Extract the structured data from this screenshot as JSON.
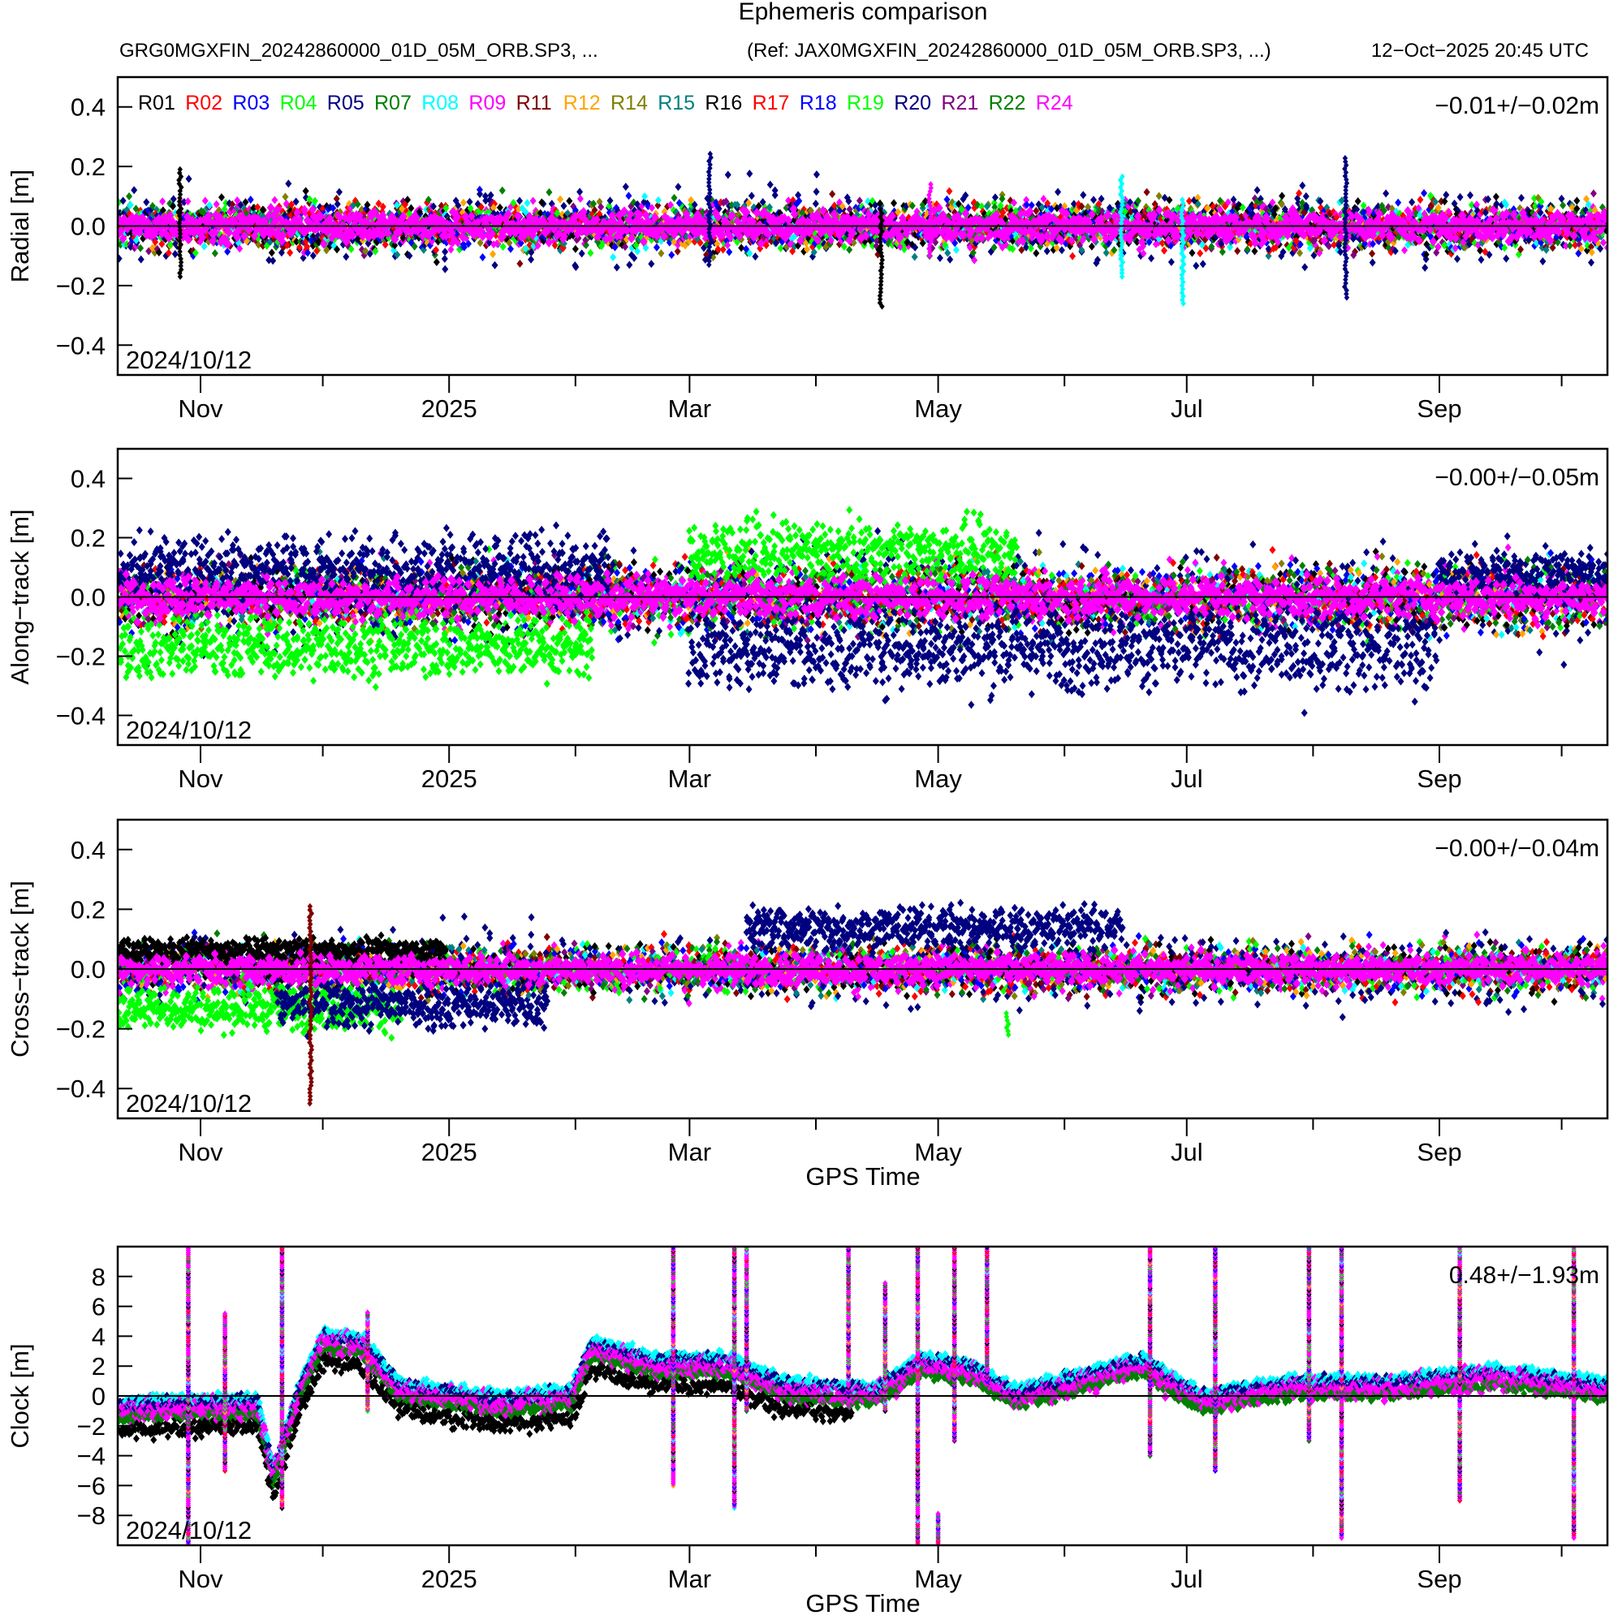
{
  "chart_data": {
    "type": "scatter",
    "title": "Ephemeris comparison",
    "subtitle_left": "GRG0MGXFIN_20242860000_01D_05M_ORB.SP3, ...",
    "subtitle_ref": "(Ref: JAX0MGXFIN_20242860000_01D_05M_ORB.SP3, ...)",
    "timestamp": "12−Oct−2025 20:45 UTC",
    "x_axis": {
      "label": "GPS Time",
      "start": "2024-10-12",
      "end": "2025-10-12",
      "major_ticks": [
        {
          "date": "2024-11-01",
          "label": "Nov"
        },
        {
          "date": "2025-01-01",
          "label": "2025"
        },
        {
          "date": "2025-03-01",
          "label": "Mar"
        },
        {
          "date": "2025-05-01",
          "label": "May"
        },
        {
          "date": "2025-07-01",
          "label": "Jul"
        },
        {
          "date": "2025-09-01",
          "label": "Sep"
        }
      ],
      "minor_ticks": [
        "2024-12-01",
        "2025-02-01",
        "2025-04-01",
        "2025-06-01",
        "2025-08-01",
        "2025-10-01"
      ]
    },
    "legend": {
      "placement": "top-left",
      "entries": [
        {
          "name": "R01",
          "color": "#000000"
        },
        {
          "name": "R02",
          "color": "#ff0000"
        },
        {
          "name": "R03",
          "color": "#0000ff"
        },
        {
          "name": "R04",
          "color": "#00ff00"
        },
        {
          "name": "R05",
          "color": "#000080"
        },
        {
          "name": "R07",
          "color": "#008000"
        },
        {
          "name": "R08",
          "color": "#00ffff"
        },
        {
          "name": "R09",
          "color": "#ff00ff"
        },
        {
          "name": "R11",
          "color": "#800000"
        },
        {
          "name": "R12",
          "color": "#ffa500"
        },
        {
          "name": "R14",
          "color": "#808000"
        },
        {
          "name": "R15",
          "color": "#008080"
        },
        {
          "name": "R16",
          "color": "#000000"
        },
        {
          "name": "R17",
          "color": "#ff0000"
        },
        {
          "name": "R18",
          "color": "#0000ff"
        },
        {
          "name": "R19",
          "color": "#00ff00"
        },
        {
          "name": "R20",
          "color": "#000080"
        },
        {
          "name": "R21",
          "color": "#800080"
        },
        {
          "name": "R22",
          "color": "#008000"
        },
        {
          "name": "R24",
          "color": "#ff00ff"
        }
      ]
    },
    "panels": [
      {
        "id": "radial",
        "ylabel": "Radial [m]",
        "ylim": [
          -0.5,
          0.5
        ],
        "yticks": [
          -0.4,
          -0.2,
          0.0,
          0.2,
          0.4
        ],
        "ytick_labels": [
          "−0.4",
          "−0.2",
          "0.0",
          "0.2",
          "0.4"
        ],
        "stat": "−0.01+/−0.02m",
        "date_label": "2024/10/12",
        "show_xlabel": false,
        "spread_typical": 0.05,
        "spikes": [
          {
            "date": "2024-10-27",
            "min": -0.17,
            "max": 0.2,
            "sat": "R01"
          },
          {
            "date": "2025-03-06",
            "min": -0.13,
            "max": 0.25,
            "sat": "R05"
          },
          {
            "date": "2025-04-17",
            "min": -0.27,
            "max": 0.06,
            "sat": "R01"
          },
          {
            "date": "2025-04-29",
            "min": -0.1,
            "max": 0.15,
            "sat": "R09"
          },
          {
            "date": "2025-06-15",
            "min": -0.17,
            "max": 0.17,
            "sat": "R08"
          },
          {
            "date": "2025-06-30",
            "min": -0.26,
            "max": 0.09,
            "sat": "R08"
          },
          {
            "date": "2025-08-09",
            "min": -0.24,
            "max": 0.23,
            "sat": "R05"
          }
        ]
      },
      {
        "id": "along-track",
        "ylabel": "Along−track [m]",
        "ylim": [
          -0.5,
          0.5
        ],
        "yticks": [
          -0.4,
          -0.2,
          0.0,
          0.2,
          0.4
        ],
        "ytick_labels": [
          "−0.4",
          "−0.2",
          "0.0",
          "0.2",
          "0.4"
        ],
        "stat": "−0.00+/−0.05m",
        "date_label": "2024/10/12",
        "show_xlabel": false,
        "spread_typical": 0.07,
        "segments": [
          {
            "sat": "R05",
            "from": "2024-10-12",
            "to": "2025-02-10",
            "center": 0.09,
            "spread": 0.12
          },
          {
            "sat": "R04",
            "from": "2024-10-12",
            "to": "2025-02-05",
            "center": -0.17,
            "spread": 0.1
          },
          {
            "sat": "R04",
            "from": "2025-03-01",
            "to": "2025-05-20",
            "center": 0.15,
            "spread": 0.1
          },
          {
            "sat": "R05",
            "from": "2025-03-01",
            "to": "2025-08-31",
            "center": -0.17,
            "spread": 0.14
          },
          {
            "sat": "R05",
            "from": "2025-09-01",
            "to": "2025-10-12",
            "center": 0.07,
            "spread": 0.08
          }
        ]
      },
      {
        "id": "cross-track",
        "ylabel": "Cross−track [m]",
        "ylim": [
          -0.5,
          0.5
        ],
        "yticks": [
          -0.4,
          -0.2,
          0.0,
          0.2,
          0.4
        ],
        "ytick_labels": [
          "−0.4",
          "−0.2",
          "0.0",
          "0.2",
          "0.4"
        ],
        "stat": "−0.00+/−0.04m",
        "date_label": "2024/10/12",
        "show_xlabel": true,
        "spread_typical": 0.05,
        "segments": [
          {
            "sat": "R04",
            "from": "2024-10-12",
            "to": "2024-12-20",
            "center": -0.13,
            "spread": 0.07
          },
          {
            "sat": "R05",
            "from": "2024-11-20",
            "to": "2025-01-25",
            "center": -0.12,
            "spread": 0.08
          },
          {
            "sat": "R05",
            "from": "2025-03-15",
            "to": "2025-06-15",
            "center": 0.14,
            "spread": 0.07
          },
          {
            "sat": "R01",
            "from": "2024-10-12",
            "to": "2024-12-31",
            "center": 0.06,
            "spread": 0.04
          }
        ],
        "spikes": [
          {
            "date": "2024-11-28",
            "min": -0.45,
            "max": 0.22,
            "sat": "R11"
          },
          {
            "date": "2025-05-18",
            "min": -0.22,
            "max": -0.14,
            "sat": "R04"
          }
        ]
      },
      {
        "id": "clock",
        "ylabel": "Clock [m]",
        "ylim": [
          -10,
          10
        ],
        "yticks": [
          -8,
          -6,
          -4,
          -2,
          0,
          2,
          4,
          6,
          8
        ],
        "ytick_labels": [
          "−8",
          "−6",
          "−4",
          "−2",
          "0",
          "2",
          "4",
          "6",
          "8"
        ],
        "stat": "0.48+/−1.93m",
        "date_label": "2024/10/12",
        "show_xlabel": true,
        "trend": [
          {
            "date": "2024-10-12",
            "value": -1.0
          },
          {
            "date": "2024-11-01",
            "value": -0.8
          },
          {
            "date": "2024-11-15",
            "value": -0.8
          },
          {
            "date": "2024-11-19",
            "value": -5.5
          },
          {
            "date": "2024-11-25",
            "value": 0.0
          },
          {
            "date": "2024-12-01",
            "value": 3.6
          },
          {
            "date": "2024-12-10",
            "value": 3.4
          },
          {
            "date": "2024-12-20",
            "value": 0.3
          },
          {
            "date": "2025-01-15",
            "value": -0.6
          },
          {
            "date": "2025-01-31",
            "value": -0.2
          },
          {
            "date": "2025-02-05",
            "value": 3.1
          },
          {
            "date": "2025-02-20",
            "value": 2.0
          },
          {
            "date": "2025-03-10",
            "value": 2.0
          },
          {
            "date": "2025-03-25",
            "value": 0.3
          },
          {
            "date": "2025-04-15",
            "value": 0.0
          },
          {
            "date": "2025-04-27",
            "value": 2.0
          },
          {
            "date": "2025-05-10",
            "value": 1.5
          },
          {
            "date": "2025-05-20",
            "value": -0.2
          },
          {
            "date": "2025-06-20",
            "value": 2.0
          },
          {
            "date": "2025-07-05",
            "value": -0.5
          },
          {
            "date": "2025-07-25",
            "value": 0.5
          },
          {
            "date": "2025-08-20",
            "value": 0.5
          },
          {
            "date": "2025-09-15",
            "value": 1.2
          },
          {
            "date": "2025-10-12",
            "value": 0.3
          }
        ],
        "spikes": [
          {
            "date": "2024-10-29",
            "min": -10,
            "max": 10
          },
          {
            "date": "2024-11-07",
            "min": -5,
            "max": 5.5
          },
          {
            "date": "2024-11-21",
            "min": -7.5,
            "max": 10
          },
          {
            "date": "2024-12-12",
            "min": -1,
            "max": 5.5
          },
          {
            "date": "2025-02-25",
            "min": -6,
            "max": 10
          },
          {
            "date": "2025-03-12",
            "min": -7.5,
            "max": 10
          },
          {
            "date": "2025-03-15",
            "min": -1,
            "max": 10
          },
          {
            "date": "2025-04-09",
            "min": 0,
            "max": 10
          },
          {
            "date": "2025-04-18",
            "min": -1,
            "max": 7.5
          },
          {
            "date": "2025-04-26",
            "min": -10,
            "max": 10
          },
          {
            "date": "2025-05-01",
            "min": -10,
            "max": -8
          },
          {
            "date": "2025-05-05",
            "min": -3,
            "max": 10
          },
          {
            "date": "2025-05-13",
            "min": 1,
            "max": 10
          },
          {
            "date": "2025-06-22",
            "min": -4,
            "max": 10
          },
          {
            "date": "2025-07-08",
            "min": -5,
            "max": 10
          },
          {
            "date": "2025-07-31",
            "min": -3,
            "max": 10
          },
          {
            "date": "2025-08-08",
            "min": -9.5,
            "max": 10
          },
          {
            "date": "2025-09-06",
            "min": -7,
            "max": 10
          },
          {
            "date": "2025-10-04",
            "min": -9.5,
            "max": 10
          }
        ],
        "r01_offset": -1.3
      }
    ]
  }
}
